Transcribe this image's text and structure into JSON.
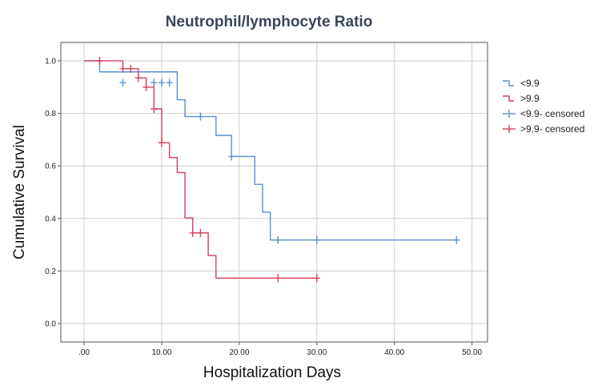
{
  "chart_data": {
    "type": "line",
    "title": "Neutrophil/lymphocyte Ratio",
    "xlabel": "Hospitalization Days",
    "ylabel": "Cumulative Survival",
    "xlim": [
      -3,
      52
    ],
    "ylim": [
      -0.07,
      1.07
    ],
    "xticks": [
      0,
      10,
      20,
      30,
      40,
      50
    ],
    "xtick_labels": [
      ".00",
      "10.00",
      "20.00",
      "30.00",
      "40.00",
      "50.00"
    ],
    "yticks": [
      0,
      0.2,
      0.4,
      0.6,
      0.8,
      1.0
    ],
    "ytick_labels": [
      "0.0",
      "0.2",
      "0.4",
      "0.6",
      "0.8",
      "1.0"
    ],
    "grid": true,
    "legend_position": "right",
    "series": [
      {
        "name": "<9.9",
        "censored_name": "<9.9- censored",
        "color": "#5b8fd4",
        "steps": [
          [
            0,
            1.0
          ],
          [
            2,
            0.958
          ],
          [
            12,
            0.852
          ],
          [
            13,
            0.788
          ],
          [
            17,
            0.716
          ],
          [
            19,
            0.636
          ],
          [
            22,
            0.53
          ],
          [
            23,
            0.424
          ],
          [
            24,
            0.318
          ],
          [
            48,
            0.318
          ]
        ],
        "censored": [
          [
            5,
            0.917
          ],
          [
            9,
            0.917
          ],
          [
            10,
            0.917
          ],
          [
            11,
            0.917
          ],
          [
            15,
            0.788
          ],
          [
            19,
            0.636
          ],
          [
            25,
            0.318
          ],
          [
            30,
            0.318
          ],
          [
            48,
            0.318
          ]
        ]
      },
      {
        "name": ">9.9",
        "censored_name": ">9.9- censored",
        "color": "#d63f5e",
        "steps": [
          [
            0,
            1.0
          ],
          [
            5,
            0.97
          ],
          [
            7,
            0.935
          ],
          [
            8,
            0.9
          ],
          [
            9,
            0.817
          ],
          [
            10,
            0.688
          ],
          [
            11,
            0.632
          ],
          [
            12,
            0.575
          ],
          [
            13,
            0.402
          ],
          [
            14,
            0.345
          ],
          [
            16,
            0.259
          ],
          [
            17,
            0.173
          ],
          [
            30,
            0.173
          ]
        ],
        "censored": [
          [
            2,
            1.0
          ],
          [
            5,
            0.97
          ],
          [
            6,
            0.97
          ],
          [
            7,
            0.935
          ],
          [
            8,
            0.9
          ],
          [
            9,
            0.817
          ],
          [
            10,
            0.688
          ],
          [
            14,
            0.345
          ],
          [
            15,
            0.345
          ],
          [
            25,
            0.173
          ],
          [
            30,
            0.173
          ]
        ]
      }
    ]
  }
}
